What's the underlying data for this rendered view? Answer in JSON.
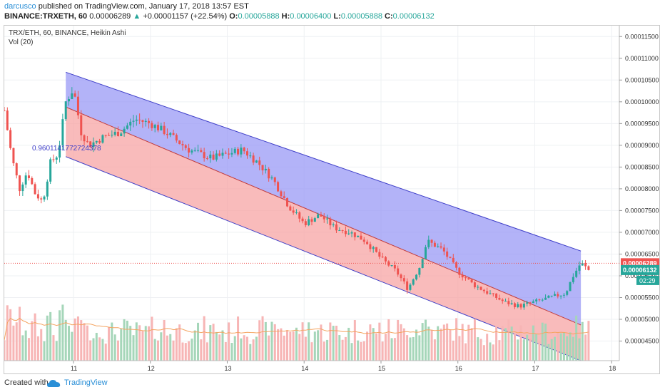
{
  "header": {
    "user": "darcusco",
    "published": "published on TradingView.com, January 17, 2018 13:57 EST",
    "symbol": "BINANCE:TRXETH, 60",
    "last": "0.00006289",
    "change_arrow": "▲",
    "change": "+0.00001157 (+22.54%)",
    "o_label": "O:",
    "o": "0.00005888",
    "h_label": "H:",
    "h": "0.00006400",
    "l_label": "L:",
    "l": "0.00005888",
    "c_label": "C:",
    "c": "0.00006132"
  },
  "legend": {
    "title": "TRX/ETH, 60, BINANCE, Heikin Ashi",
    "volume": "Vol (20)",
    "fib_label": "0.9601141772724378"
  },
  "footer": {
    "created": "Created with",
    "brand": "TradingView"
  },
  "colors": {
    "up": "#26a69a",
    "down": "#ef5350",
    "channel_upper": "#9a9af5",
    "channel_lower": "#f7a4a4",
    "channel_line": "#3f3fc8",
    "vol_up": "#a5d6b9",
    "vol_down": "#f7b5b5",
    "ma": "#f4a460"
  },
  "chart_data": {
    "type": "candlestick",
    "title": "TRX/ETH, 60, BINANCE, Heikin Ashi",
    "x_ticks": [
      "11",
      "12",
      "13",
      "14",
      "15",
      "16",
      "17",
      "18"
    ],
    "y_ticks": [
      "0.00004500",
      "0.00005000",
      "0.00005500",
      "0.00006000",
      "0.00006500",
      "0.00007000",
      "0.00007500",
      "0.00008000",
      "0.00008500",
      "0.00009000",
      "0.00009500",
      "0.00010000",
      "0.00010500",
      "0.00011000",
      "0.00011500"
    ],
    "ylim": [
      4.05e-05,
      0.0001175
    ],
    "xlim": [
      10.1,
      18.1
    ],
    "price_labels": {
      "last": "0.00006289",
      "close": "0.00006132",
      "countdown": "02:29"
    },
    "channel": {
      "top": [
        [
          10.9,
          0.0001068
        ],
        [
          17.6,
          6.57e-05
        ]
      ],
      "mid": [
        [
          10.9,
          9.88e-05
        ],
        [
          17.6,
          4.87e-05
        ]
      ],
      "bottom": [
        [
          10.9,
          8.74e-05
        ],
        [
          17.6,
          4.05e-05
        ]
      ]
    },
    "price_path": [
      [
        10.1,
        9.8e-05
      ],
      [
        10.2,
        8.7e-05
      ],
      [
        10.3,
        8e-05
      ],
      [
        10.4,
        8.4e-05
      ],
      [
        10.5,
        7.9e-05
      ],
      [
        10.6,
        7.7e-05
      ],
      [
        10.7,
        8.6e-05
      ],
      [
        10.8,
        8.8e-05
      ],
      [
        10.9,
        0.0001
      ],
      [
        11.0,
        0.000103
      ],
      [
        11.1,
        9.3e-05
      ],
      [
        11.2,
        9e-05
      ],
      [
        11.4,
        9.2e-05
      ],
      [
        11.6,
        9.3e-05
      ],
      [
        11.8,
        9.6e-05
      ],
      [
        12.0,
        9.5e-05
      ],
      [
        12.2,
        9.3e-05
      ],
      [
        12.5,
        8.9e-05
      ],
      [
        12.8,
        8.7e-05
      ],
      [
        13.0,
        8.8e-05
      ],
      [
        13.2,
        8.9e-05
      ],
      [
        13.4,
        8.6e-05
      ],
      [
        13.6,
        8.2e-05
      ],
      [
        13.8,
        7.6e-05
      ],
      [
        14.0,
        7.2e-05
      ],
      [
        14.2,
        7.4e-05
      ],
      [
        14.4,
        7.1e-05
      ],
      [
        14.6,
        7e-05
      ],
      [
        14.8,
        6.8e-05
      ],
      [
        15.0,
        6.4e-05
      ],
      [
        15.2,
        6.1e-05
      ],
      [
        15.35,
        5.7e-05
      ],
      [
        15.5,
        6.2e-05
      ],
      [
        15.6,
        6.8e-05
      ],
      [
        15.8,
        6.6e-05
      ],
      [
        16.0,
        6.1e-05
      ],
      [
        16.2,
        5.8e-05
      ],
      [
        16.4,
        5.6e-05
      ],
      [
        16.6,
        5.4e-05
      ],
      [
        16.8,
        5.3e-05
      ],
      [
        17.0,
        5.4e-05
      ],
      [
        17.2,
        5.5e-05
      ],
      [
        17.4,
        5.6e-05
      ],
      [
        17.5,
        6e-05
      ],
      [
        17.6,
        6.3e-05
      ],
      [
        17.7,
        6.13e-05
      ]
    ]
  }
}
